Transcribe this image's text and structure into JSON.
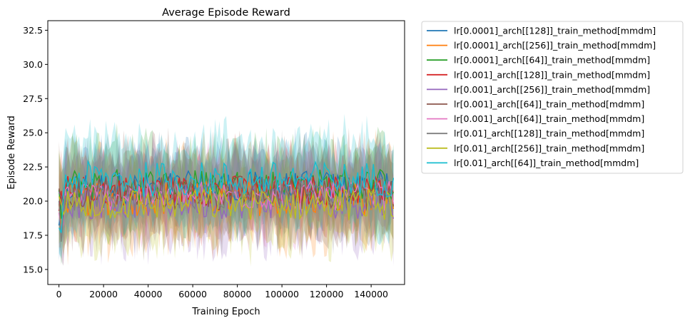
{
  "chart_data": {
    "type": "line",
    "title": "Average Episode Reward",
    "xlabel": "Training Epoch",
    "ylabel": "Episode Reward",
    "xlim": [
      -5000,
      155000
    ],
    "ylim": [
      13.9,
      33.2
    ],
    "xticks": [
      0,
      20000,
      40000,
      60000,
      80000,
      100000,
      120000,
      140000
    ],
    "xtick_labels": [
      "0",
      "20000",
      "40000",
      "60000",
      "80000",
      "100000",
      "120000",
      "140000"
    ],
    "yticks": [
      15.0,
      17.5,
      20.0,
      22.5,
      25.0,
      27.5,
      30.0,
      32.5
    ],
    "ytick_labels": [
      "15.0",
      "17.5",
      "20.0",
      "22.5",
      "25.0",
      "27.5",
      "30.0",
      "32.5"
    ],
    "grid": false,
    "legend_position": "outside-right",
    "x_step": 1000,
    "x_count": 151,
    "series": [
      {
        "name": "lr[0.0001]_arch[[128]]_train_method[mmdm]",
        "color": "#1f77b4",
        "center": 21.0,
        "spread": 1.2,
        "band": 2.6
      },
      {
        "name": "lr[0.0001]_arch[[256]]_train_method[mmdm]",
        "color": "#ff7f0e",
        "center": 20.2,
        "spread": 1.3,
        "band": 3.0
      },
      {
        "name": "lr[0.0001]_arch[[64]]_train_method[mmdm]",
        "color": "#2ca02c",
        "center": 21.2,
        "spread": 1.2,
        "band": 2.8
      },
      {
        "name": "lr[0.001]_arch[[128]]_train_method[mmdm]",
        "color": "#d62728",
        "center": 20.8,
        "spread": 1.1,
        "band": 2.5
      },
      {
        "name": "lr[0.001]_arch[[256]]_train_method[mmdm]",
        "color": "#9467bd",
        "center": 20.0,
        "spread": 1.3,
        "band": 2.8
      },
      {
        "name": "lr[0.001]_arch[[64]]_train_method[mdmm]",
        "color": "#8c564b",
        "center": 20.6,
        "spread": 1.3,
        "band": 2.9
      },
      {
        "name": "lr[0.001]_arch[[64]]_train_method[mmdm]",
        "color": "#e377c2",
        "center": 20.4,
        "spread": 1.1,
        "band": 2.6
      },
      {
        "name": "lr[0.01]_arch[[128]]_train_method[mmdm]",
        "color": "#7f7f7f",
        "center": 20.5,
        "spread": 1.2,
        "band": 2.8
      },
      {
        "name": "lr[0.01]_arch[[256]]_train_method[mmdm]",
        "color": "#bcbd22",
        "center": 19.8,
        "spread": 1.2,
        "band": 2.7
      },
      {
        "name": "lr[0.01]_arch[[64]]_train_method[mmdm]",
        "color": "#17becf",
        "center": 21.6,
        "spread": 1.3,
        "band": 3.0
      }
    ]
  }
}
